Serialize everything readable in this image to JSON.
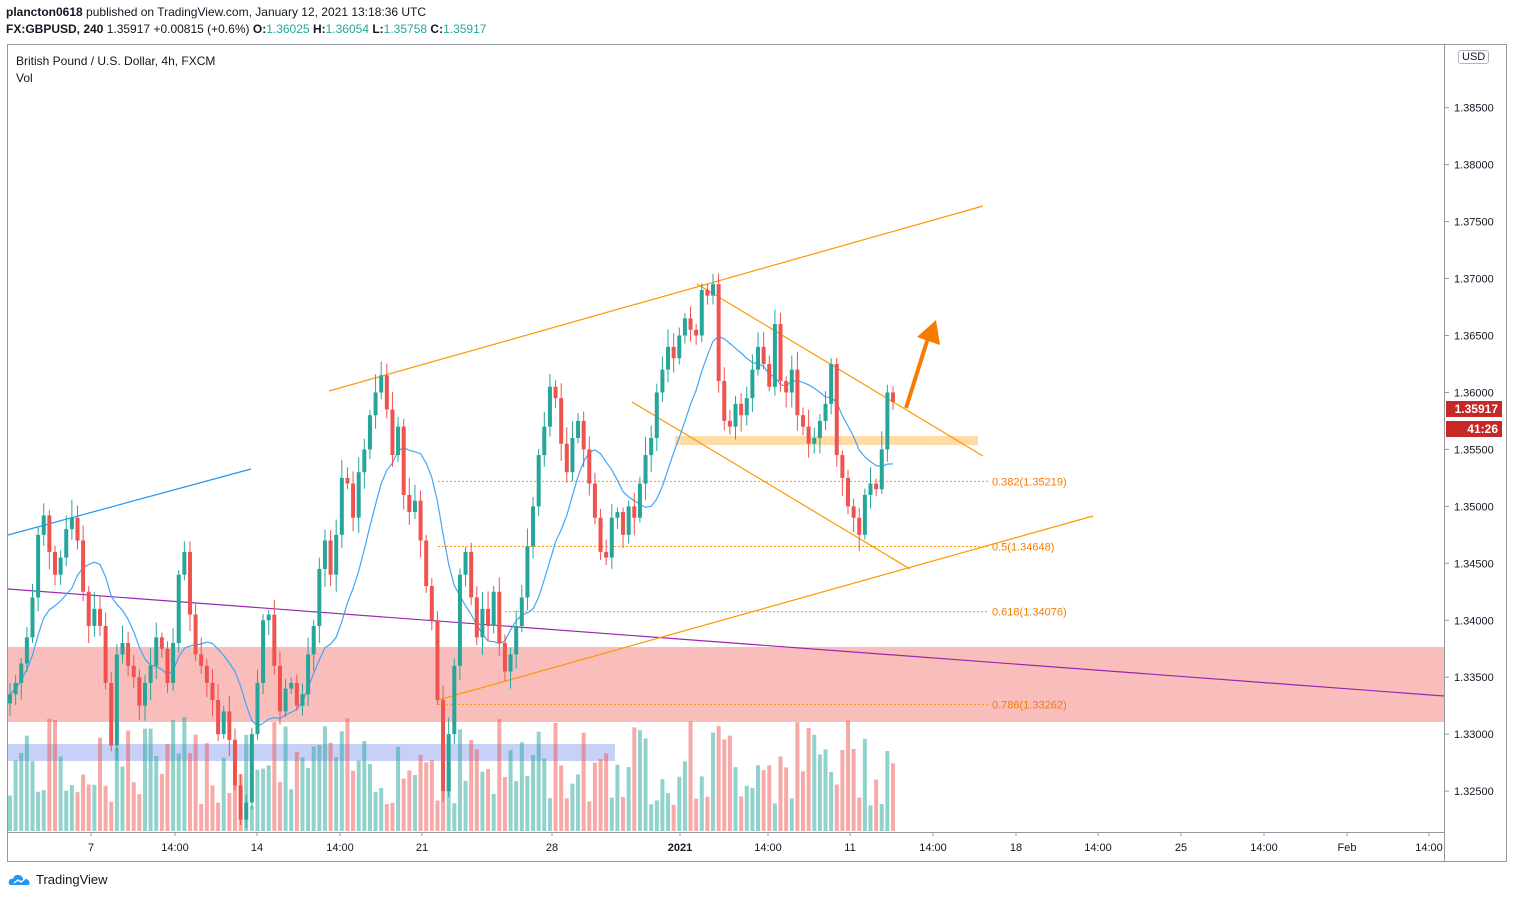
{
  "header": {
    "publisher": "plancton0618",
    "published_text": "published on TradingView.com, January 12, 2021 13:18:36 UTC",
    "symbol": "FX:GBPUSD, 240",
    "last": "1.35917",
    "change": "+0.00815 (+0.6%)",
    "o_label": "O:",
    "o_val": "1.36025",
    "h_label": "H:",
    "h_val": "1.36054",
    "l_label": "L:",
    "l_val": "1.35758",
    "c_label": "C:",
    "c_val": "1.35917"
  },
  "chart_title": "British Pound / U.S. Dollar, 4h, FXCM",
  "volume_label": "Vol",
  "currency": "USD",
  "price_tag": {
    "price": "1.35917",
    "countdown": "41:26"
  },
  "footer": {
    "brand": "TradingView"
  },
  "colors": {
    "up": "#26a69a",
    "down": "#ef5350",
    "orange": "#ff9800",
    "arrow": "#f57c00",
    "purple": "#9c27b0",
    "blue": "#2196f3",
    "ma": "#42a5f5"
  },
  "chart_data": {
    "type": "candlestick",
    "symbol": "GBPUSD",
    "timeframe": "4h",
    "ylim": [
      1.3215,
      1.3905
    ],
    "y_ticks": [
      "1.38500",
      "1.38000",
      "1.37500",
      "1.37000",
      "1.36500",
      "1.36000",
      "1.35500",
      "1.35000",
      "1.34500",
      "1.34000",
      "1.33500",
      "1.33000",
      "1.32500"
    ],
    "x_ticks": [
      "7",
      "14:00",
      "14",
      "14:00",
      "21",
      "28",
      "2021",
      "14:00",
      "11",
      "14:00",
      "18",
      "14:00",
      "25",
      "14:00",
      "Feb",
      "14:00"
    ],
    "fib_levels": [
      {
        "label": "0.382(1.35219)",
        "value": 1.35219
      },
      {
        "label": "0.5(1.34648)",
        "value": 1.34648
      },
      {
        "label": "0.618(1.34076)",
        "value": 1.34076
      },
      {
        "label": "0.786(1.33262)",
        "value": 1.33262
      }
    ],
    "support_zone": [
      1.3315,
      1.3381
    ],
    "resistance_zone": [
      1.356,
      1.3568
    ],
    "close_sequence": [
      1.3335,
      1.3345,
      1.3362,
      1.3385,
      1.342,
      1.3475,
      1.3492,
      1.346,
      1.344,
      1.3455,
      1.348,
      1.349,
      1.347,
      1.3425,
      1.3395,
      1.341,
      1.3395,
      1.3345,
      1.329,
      1.337,
      1.338,
      1.336,
      1.335,
      1.3325,
      1.3345,
      1.336,
      1.3385,
      1.3375,
      1.3345,
      1.338,
      1.344,
      1.346,
      1.3405,
      1.337,
      1.336,
      1.3345,
      1.333,
      1.33,
      1.332,
      1.3295,
      1.3255,
      1.3225,
      1.324,
      1.33,
      1.3345,
      1.34,
      1.3405,
      1.336,
      1.332,
      1.334,
      1.3345,
      1.3325,
      1.3335,
      1.337,
      1.3395,
      1.3445,
      1.347,
      1.344,
      1.3475,
      1.3525,
      1.352,
      1.349,
      1.353,
      1.355,
      1.358,
      1.36,
      1.3615,
      1.3585,
      1.3545,
      1.357,
      1.351,
      1.3495,
      1.3505,
      1.347,
      1.343,
      1.34,
      1.333,
      1.325,
      1.33,
      1.336,
      1.344,
      1.346,
      1.342,
      1.3385,
      1.341,
      1.3395,
      1.3425,
      1.338,
      1.3355,
      1.337,
      1.3395,
      1.342,
      1.3465,
      1.35,
      1.3545,
      1.357,
      1.3605,
      1.3595,
      1.3555,
      1.353,
      1.356,
      1.3575,
      1.355,
      1.352,
      1.349,
      1.346,
      1.3455,
      1.349,
      1.3495,
      1.3475,
      1.35,
      1.349,
      1.352,
      1.3545,
      1.356,
      1.36,
      1.362,
      1.364,
      1.363,
      1.365,
      1.3665,
      1.3655,
      1.365,
      1.369,
      1.3685,
      1.3695,
      1.361,
      1.3575,
      1.357,
      1.359,
      1.358,
      1.3595,
      1.362,
      1.364,
      1.3625,
      1.3605,
      1.366,
      1.361,
      1.36,
      1.362,
      1.358,
      1.357,
      1.3555,
      1.356,
      1.3575,
      1.359,
      1.3625,
      1.3545,
      1.3525,
      1.35,
      1.349,
      1.3475,
      1.351,
      1.352,
      1.3515,
      1.355,
      1.36,
      1.35917
    ]
  }
}
